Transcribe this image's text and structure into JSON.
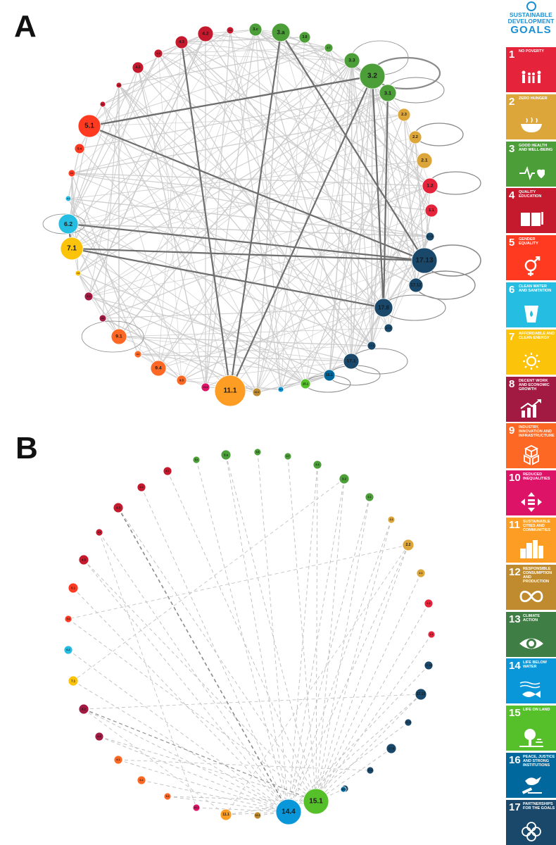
{
  "panels": [
    {
      "label": "A",
      "nodes": [
        {
          "id": "3.c",
          "goal": 3
        },
        {
          "id": "3.a",
          "goal": 3
        },
        {
          "id": "3.8",
          "goal": 3
        },
        {
          "id": "3.7",
          "goal": 3
        },
        {
          "id": "3.3",
          "goal": 3
        },
        {
          "id": "3.2",
          "goal": 3
        },
        {
          "id": "3.1",
          "goal": 3
        },
        {
          "id": "2.3",
          "goal": 2
        },
        {
          "id": "2.2",
          "goal": 2
        },
        {
          "id": "2.1",
          "goal": 2
        },
        {
          "id": "1.2",
          "goal": 1
        },
        {
          "id": "1.1",
          "goal": 1
        },
        {
          "id": "17.19",
          "goal": 17
        },
        {
          "id": "17.13",
          "goal": 17
        },
        {
          "id": "17.12",
          "goal": 17
        },
        {
          "id": "17.8",
          "goal": 17
        },
        {
          "id": "17.6",
          "goal": 17
        },
        {
          "id": "17.3",
          "goal": 17
        },
        {
          "id": "17.1",
          "goal": 17
        },
        {
          "id": "16.1",
          "goal": 16
        },
        {
          "id": "15.1",
          "goal": 15
        },
        {
          "id": "14.4",
          "goal": 14
        },
        {
          "id": "12.2",
          "goal": 12
        },
        {
          "id": "11.1",
          "goal": 11
        },
        {
          "id": "10.2",
          "goal": 10
        },
        {
          "id": "9.5",
          "goal": 9
        },
        {
          "id": "9.4",
          "goal": 9
        },
        {
          "id": "9.2",
          "goal": 9
        },
        {
          "id": "9.1",
          "goal": 9
        },
        {
          "id": "8.5",
          "goal": 8
        },
        {
          "id": "8.3",
          "goal": 8
        },
        {
          "id": "7.2",
          "goal": 7
        },
        {
          "id": "7.1",
          "goal": 7
        },
        {
          "id": "6.2",
          "goal": 6
        },
        {
          "id": "6.1",
          "goal": 6
        },
        {
          "id": "5.5",
          "goal": 5
        },
        {
          "id": "5.4",
          "goal": 5
        },
        {
          "id": "5.1",
          "goal": 5
        },
        {
          "id": "4.c",
          "goal": 4
        },
        {
          "id": "4.6",
          "goal": 4
        },
        {
          "id": "4.5",
          "goal": 4
        },
        {
          "id": "4.4",
          "goal": 4
        },
        {
          "id": "4.3",
          "goal": 4
        },
        {
          "id": "4.2",
          "goal": 4
        },
        {
          "id": "4.1",
          "goal": 4
        }
      ]
    },
    {
      "label": "B",
      "nodes": [
        {
          "id": "3.c",
          "goal": 3
        },
        {
          "id": "3.a",
          "goal": 3
        },
        {
          "id": "3.8",
          "goal": 3
        },
        {
          "id": "3.7",
          "goal": 3
        },
        {
          "id": "3.3",
          "goal": 3
        },
        {
          "id": "3.2",
          "goal": 3
        },
        {
          "id": "3.1",
          "goal": 3
        },
        {
          "id": "2.3",
          "goal": 2
        },
        {
          "id": "2.2",
          "goal": 2
        },
        {
          "id": "2.1",
          "goal": 2
        },
        {
          "id": "1.2",
          "goal": 1
        },
        {
          "id": "1.1",
          "goal": 1
        },
        {
          "id": "17.19",
          "goal": 17
        },
        {
          "id": "17.13",
          "goal": 17
        },
        {
          "id": "17.12",
          "goal": 17
        },
        {
          "id": "17.8",
          "goal": 17
        },
        {
          "id": "17.6",
          "goal": 17
        },
        {
          "id": "17.1",
          "goal": 17
        },
        {
          "id": "16.1",
          "goal": 16
        },
        {
          "id": "15.1",
          "goal": 15
        },
        {
          "id": "14.4",
          "goal": 14
        },
        {
          "id": "12.2",
          "goal": 12
        },
        {
          "id": "11.1",
          "goal": 11
        },
        {
          "id": "10.2",
          "goal": 10
        },
        {
          "id": "9.4",
          "goal": 9
        },
        {
          "id": "9.2",
          "goal": 9
        },
        {
          "id": "9.1",
          "goal": 9
        },
        {
          "id": "8.3",
          "goal": 8
        },
        {
          "id": "8.2",
          "goal": 8
        },
        {
          "id": "7.1",
          "goal": 7
        },
        {
          "id": "6.2",
          "goal": 6
        },
        {
          "id": "5.4",
          "goal": 5
        },
        {
          "id": "5.1",
          "goal": 5
        },
        {
          "id": "4.5",
          "goal": 4
        },
        {
          "id": "4.4",
          "goal": 4
        },
        {
          "id": "4.3",
          "goal": 4
        },
        {
          "id": "4.2",
          "goal": 4
        },
        {
          "id": "4.1",
          "goal": 4
        }
      ]
    }
  ],
  "sdg_panel": {
    "header_line1": "SUSTAINABLE",
    "header_line2": "DEVELOPMENT",
    "header_line3": "GOALS",
    "goals": [
      {
        "number": "1",
        "title": "No poverty",
        "color": "#e5243b",
        "icon": "family-icon"
      },
      {
        "number": "2",
        "title": "Zero hunger",
        "color": "#dda63a",
        "icon": "bowl-icon"
      },
      {
        "number": "3",
        "title": "Good health and well-being",
        "color": "#4c9f38",
        "icon": "heartbeat-icon"
      },
      {
        "number": "4",
        "title": "Quality education",
        "color": "#c5192d",
        "icon": "book-icon"
      },
      {
        "number": "5",
        "title": "Gender equality",
        "color": "#ff3a21",
        "icon": "gender-icon"
      },
      {
        "number": "6",
        "title": "Clean water and sanitation",
        "color": "#26bde2",
        "icon": "water-glass-icon"
      },
      {
        "number": "7",
        "title": "Affordable and clean energy",
        "color": "#fcc30b",
        "icon": "sun-power-icon"
      },
      {
        "number": "8",
        "title": "Decent work and economic growth",
        "color": "#a21942",
        "icon": "growth-chart-icon"
      },
      {
        "number": "9",
        "title": "Industry, innovation and infrastructure",
        "color": "#fd6925",
        "icon": "cubes-icon"
      },
      {
        "number": "10",
        "title": "Reduced inequalities",
        "color": "#dd1367",
        "icon": "equality-arrows-icon"
      },
      {
        "number": "11",
        "title": "Sustainable cities and communities",
        "color": "#fd9d24",
        "icon": "city-icon"
      },
      {
        "number": "12",
        "title": "Responsible consumption and production",
        "color": "#bf8b2e",
        "icon": "infinity-icon"
      },
      {
        "number": "13",
        "title": "Climate action",
        "color": "#3f7e44",
        "icon": "eye-globe-icon"
      },
      {
        "number": "14",
        "title": "Life below water",
        "color": "#0a97d9",
        "icon": "fish-icon"
      },
      {
        "number": "15",
        "title": "Life on land",
        "color": "#56c02b",
        "icon": "tree-icon"
      },
      {
        "number": "16",
        "title": "Peace, justice and strong institutions",
        "color": "#00689d",
        "icon": "dove-gavel-icon"
      },
      {
        "number": "17",
        "title": "Partnerships for the goals",
        "color": "#19486a",
        "icon": "flower-rings-icon"
      }
    ]
  }
}
